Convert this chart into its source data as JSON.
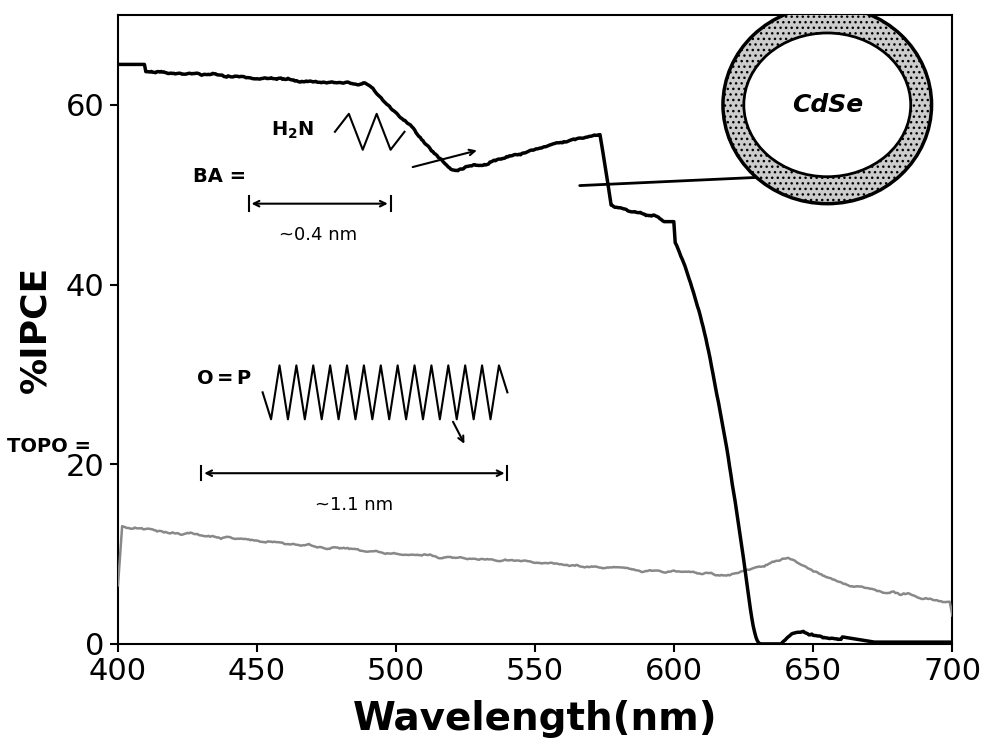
{
  "xlim": [
    400,
    700
  ],
  "ylim": [
    0,
    70
  ],
  "xlabel": "Wavelength(nm)",
  "ylabel": "%IPCE",
  "xlabel_fontsize": 28,
  "ylabel_fontsize": 26,
  "xtick_fontsize": 22,
  "ytick_fontsize": 22,
  "xticks": [
    400,
    450,
    500,
    550,
    600,
    650,
    700
  ],
  "yticks": [
    0,
    20,
    40,
    60
  ],
  "background_color": "#ffffff",
  "line1_color": "#000000",
  "line2_color": "#888888",
  "cdse_label": "CdSe",
  "ba_label": "BA =",
  "topo_label": "TOPO =",
  "ba_size_label": "~0.4 nm",
  "topo_size_label": "~1.1 nm",
  "h2n_label": "H₂N",
  "op_label": "O=P"
}
